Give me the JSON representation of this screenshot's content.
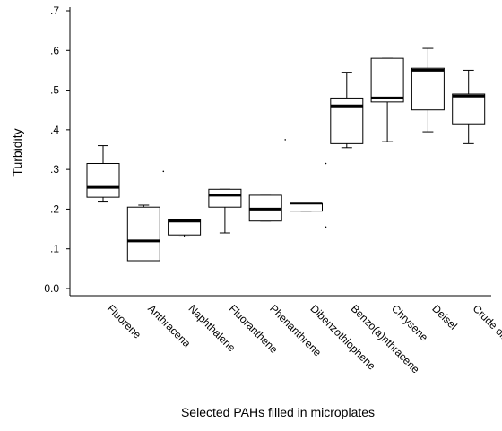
{
  "chart_data": {
    "type": "boxplot",
    "title": "",
    "xlabel": "Selected PAHs filled in microplates",
    "ylabel": "Turbidity",
    "ylim": [
      0,
      0.7
    ],
    "yticks": [
      {
        "value": 0.0,
        "label": "0.0"
      },
      {
        "value": 0.1,
        "label": ".1"
      },
      {
        "value": 0.2,
        "label": ".2"
      },
      {
        "value": 0.3,
        "label": ".3"
      },
      {
        "value": 0.4,
        "label": ".4"
      },
      {
        "value": 0.5,
        "label": ".5"
      },
      {
        "value": 0.6,
        "label": ".6"
      },
      {
        "value": 0.7,
        "label": ".7"
      }
    ],
    "grid": false,
    "categories": [
      "Fluorene",
      "Anthracena",
      "Naphthalene",
      "Fluoranthene",
      "Phenanthrene",
      "Dibenzothiophene",
      "Benzo(a)nthracene",
      "Chrysene",
      "Deisel",
      "Crude oil"
    ],
    "boxes": [
      {
        "min": 0.22,
        "q1": 0.23,
        "median": 0.255,
        "q3": 0.315,
        "max": 0.36,
        "outliers": []
      },
      {
        "min": 0.07,
        "q1": 0.07,
        "median": 0.12,
        "q3": 0.205,
        "max": 0.21,
        "outliers": [
          0.295
        ]
      },
      {
        "min": 0.13,
        "q1": 0.135,
        "median": 0.17,
        "q3": 0.175,
        "max": 0.175,
        "outliers": []
      },
      {
        "min": 0.14,
        "q1": 0.205,
        "median": 0.235,
        "q3": 0.25,
        "max": 0.25,
        "outliers": []
      },
      {
        "min": 0.17,
        "q1": 0.17,
        "median": 0.2,
        "q3": 0.235,
        "max": 0.235,
        "outliers": [
          0.375
        ]
      },
      {
        "min": 0.195,
        "q1": 0.195,
        "median": 0.215,
        "q3": 0.215,
        "max": 0.215,
        "outliers": [
          0.315,
          0.155
        ]
      },
      {
        "min": 0.355,
        "q1": 0.365,
        "median": 0.46,
        "q3": 0.48,
        "max": 0.545,
        "outliers": []
      },
      {
        "min": 0.37,
        "q1": 0.47,
        "median": 0.48,
        "q3": 0.58,
        "max": 0.58,
        "outliers": []
      },
      {
        "min": 0.395,
        "q1": 0.45,
        "median": 0.55,
        "q3": 0.555,
        "max": 0.605,
        "outliers": []
      },
      {
        "min": 0.365,
        "q1": 0.415,
        "median": 0.485,
        "q3": 0.49,
        "max": 0.55,
        "outliers": []
      }
    ],
    "colors": {
      "stroke": "#000000",
      "box_fill": "#ffffff",
      "axis": "#000000"
    }
  }
}
